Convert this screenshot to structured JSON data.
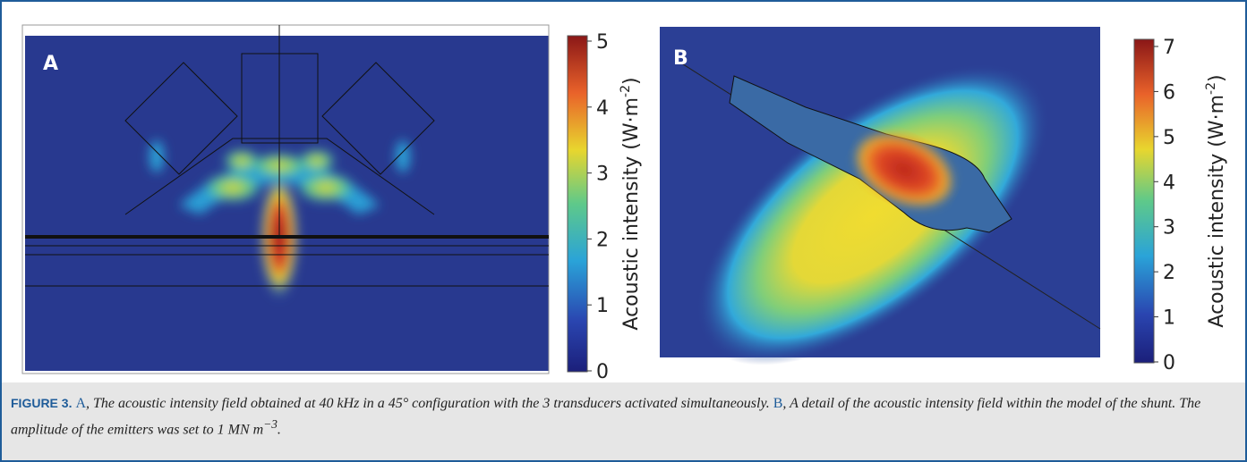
{
  "panels": [
    {
      "label": "A",
      "colorbar": {
        "ticks": [
          0,
          1,
          2,
          3,
          4,
          5
        ],
        "label": "Acoustic intensity (W·m",
        "label_sup": "-2",
        "label_end": ")"
      }
    },
    {
      "label": "B",
      "colorbar": {
        "ticks": [
          0,
          1,
          2,
          3,
          4,
          5,
          6,
          7
        ],
        "label": "Acoustic intensity (W·m",
        "label_sup": "-2",
        "label_end": ")"
      }
    }
  ],
  "caption": {
    "figure": "FIGURE 3.",
    "ref_a": "A",
    "text_a": ", The acoustic intensity field obtained at 40 kHz in a 45° configuration with the 3 transducers activated simultaneously.",
    "ref_b": "B",
    "text_b": ", A detail of the acoustic intensity field within the model of the shunt. The amplitude of the emitters was set to 1 MN m",
    "sup": "−3",
    "end": "."
  }
}
